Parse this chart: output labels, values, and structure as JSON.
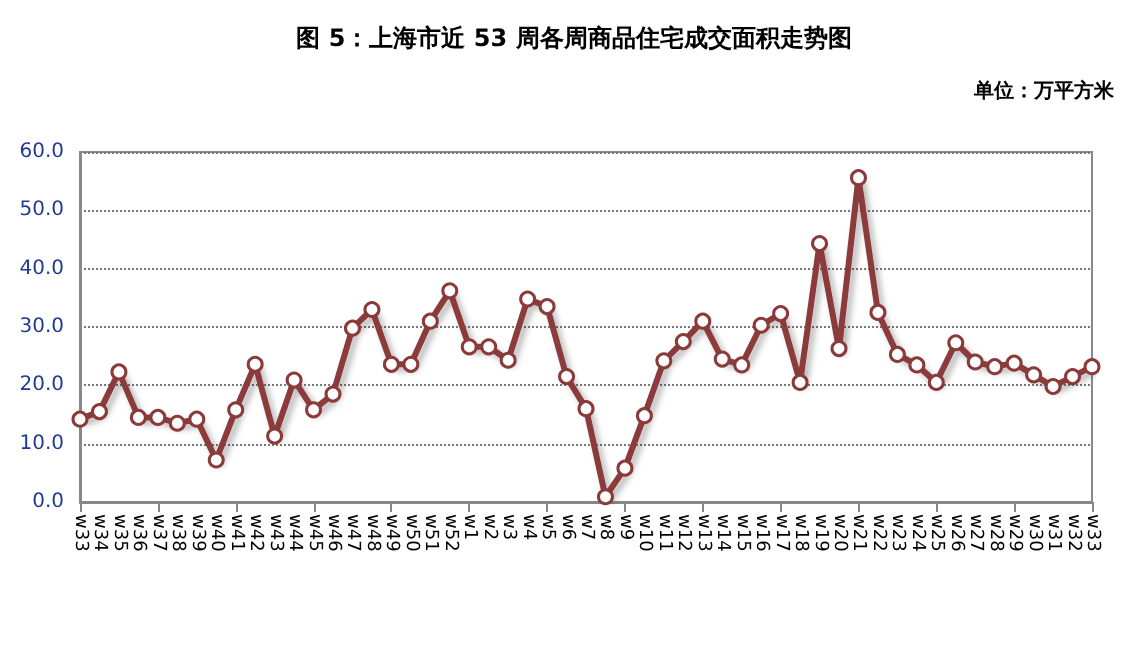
{
  "chart_data": {
    "type": "line",
    "title": "图 5：上海市近 53 周各周商品住宅成交面积走势图",
    "subtitle": "单位：万平方米",
    "categories": [
      "w33",
      "w34",
      "w35",
      "w36",
      "w37",
      "w38",
      "w39",
      "w40",
      "w41",
      "w42",
      "w43",
      "w44",
      "w45",
      "w46",
      "w47",
      "w48",
      "w49",
      "w50",
      "w51",
      "w52",
      "w1",
      "w2",
      "w3",
      "w4",
      "w5",
      "w6",
      "w7",
      "w8",
      "w9",
      "w10",
      "w11",
      "w12",
      "w13",
      "w14",
      "w15",
      "w16",
      "w17",
      "w18",
      "w19",
      "w20",
      "w21",
      "w22",
      "w23",
      "w24",
      "w25",
      "w26",
      "w27",
      "w28",
      "w29",
      "w30",
      "w31",
      "w32",
      "w33"
    ],
    "series": [
      {
        "color": "#8b3a3a",
        "values": [
          14.2,
          15.5,
          22.3,
          14.5,
          14.5,
          13.5,
          14.2,
          7.2,
          15.8,
          23.6,
          11.3,
          20.9,
          15.8,
          18.5,
          29.8,
          33.0,
          23.6,
          23.6,
          31.0,
          36.2,
          26.6,
          26.6,
          24.3,
          34.8,
          33.5,
          21.5,
          16.0,
          0.9,
          5.8,
          14.8,
          24.2,
          27.5,
          31.0,
          24.5,
          23.5,
          30.3,
          32.3,
          20.5,
          44.3,
          26.3,
          55.6,
          32.5,
          25.3,
          23.5,
          20.5,
          27.3,
          24.0,
          23.2,
          23.8,
          21.8,
          19.8,
          21.5,
          23.2
        ]
      }
    ],
    "ylim": [
      0,
      60
    ],
    "yticks": [
      {
        "value": 0,
        "label": "0.0"
      },
      {
        "value": 10,
        "label": "10.0"
      },
      {
        "value": 20,
        "label": "20.0"
      },
      {
        "value": 30,
        "label": "30.0"
      },
      {
        "value": 40,
        "label": "40.0"
      },
      {
        "value": 50,
        "label": "50.0"
      },
      {
        "value": 60,
        "label": "60.0"
      }
    ],
    "grid": "y",
    "marker": "circle",
    "line_style": "solid"
  }
}
